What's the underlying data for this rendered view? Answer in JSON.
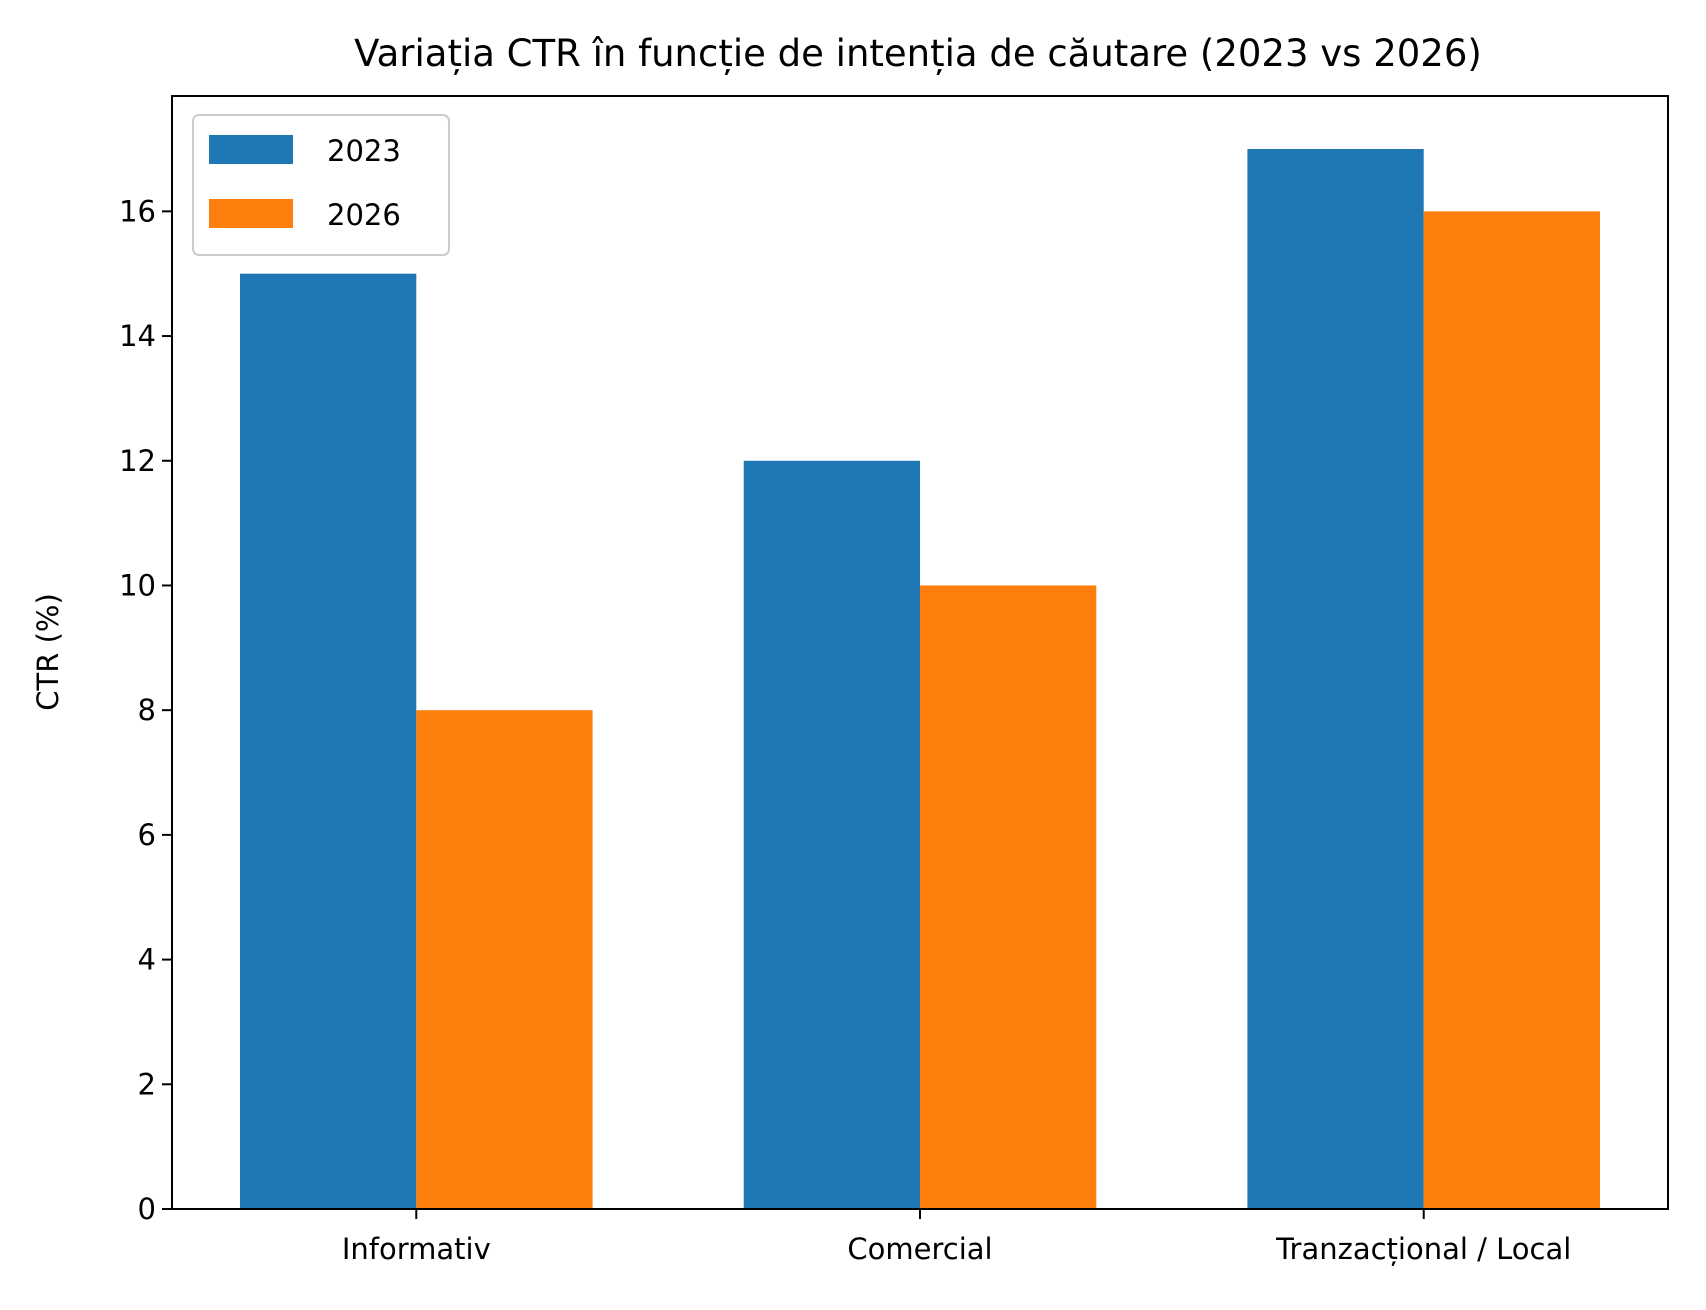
{
  "chart_data": {
    "type": "bar",
    "title": "Variația CTR în funcție de intenția de căutare (2023 vs 2026)",
    "xlabel": "",
    "ylabel": "CTR (%)",
    "categories": [
      "Informativ",
      "Comercial",
      "Tranzacțional / Local"
    ],
    "series": [
      {
        "name": "2023",
        "values": [
          15,
          12,
          17
        ],
        "color": "#1f77b4"
      },
      {
        "name": "2026",
        "values": [
          8,
          10,
          16
        ],
        "color": "#ff7f0e"
      }
    ],
    "yticks": [
      0,
      2,
      4,
      6,
      8,
      10,
      12,
      14,
      16
    ],
    "ylim": [
      0,
      17.85
    ],
    "grid": false,
    "legend_position": "top-left"
  }
}
